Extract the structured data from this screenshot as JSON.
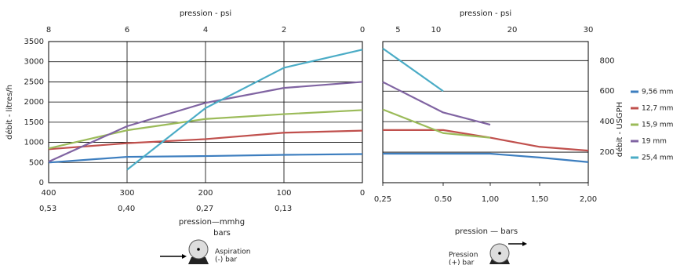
{
  "chart_data": [
    {
      "type": "line",
      "x2label": "pression - psi",
      "x2lim": [
        8,
        0
      ],
      "x2ticks": [
        8,
        6,
        4,
        2,
        0
      ],
      "xlabel": "pression—mmhg",
      "xlabel2": "bars",
      "xlim": [
        400,
        0
      ],
      "xticks": [
        400,
        300,
        200,
        100,
        0
      ],
      "x_bars_labels": [
        "0,53",
        "0,40",
        "0,27",
        "0,13"
      ],
      "ylabel": "débit - litres/h",
      "ylim": [
        0,
        3500
      ],
      "yticks": [
        0,
        500,
        1000,
        1500,
        2000,
        2500,
        3000,
        3500
      ],
      "grid": true,
      "annotations": [
        "Aspiration",
        "(-) bar"
      ],
      "x": [
        400,
        300,
        200,
        100,
        0
      ],
      "series": [
        {
          "color": "#3d7ebf",
          "values": [
            500,
            640,
            660,
            690,
            710
          ]
        },
        {
          "color": "#c0504d",
          "values": [
            830,
            980,
            1080,
            1240,
            1290
          ]
        },
        {
          "color": "#9bbb59",
          "values": [
            850,
            1300,
            1580,
            1700,
            1800
          ]
        },
        {
          "color": "#8064a2",
          "values": [
            520,
            1400,
            1980,
            2350,
            2500
          ]
        },
        {
          "color": "#4bacc6",
          "values": [
            null,
            320,
            1850,
            2850,
            3300
          ]
        }
      ]
    },
    {
      "type": "line",
      "x2label": "pression - psi",
      "x2lim": [
        3,
        30
      ],
      "x2ticks": [
        5,
        10,
        20,
        30
      ],
      "xlabel": "pression — bars",
      "xlim": [
        0.25,
        2
      ],
      "xticks": [
        {
          "value": 0.25,
          "label": "0,25"
        },
        {
          "value": 0.5,
          "label": "0.50"
        },
        {
          "value": 1,
          "label": "1,00"
        },
        {
          "value": 1.5,
          "label": "1,50"
        },
        {
          "value": 2,
          "label": "2,00"
        }
      ],
      "y2label": "débit - USGPH",
      "y2lim": [
        0,
        925
      ],
      "y2ticks": [
        200,
        400,
        600,
        800
      ],
      "grid": true,
      "annotations": [
        "Pression",
        "(+) bar"
      ],
      "x": [
        0.25,
        0.5,
        1,
        1.5,
        2
      ],
      "series": [
        {
          "name": "9,56 mm",
          "color": "#3d7ebf",
          "axis": "y2",
          "values": [
            190,
            190,
            190,
            165,
            135
          ]
        },
        {
          "name": "12,7 mm",
          "color": "#c0504d",
          "axis": "y2",
          "values": [
            345,
            345,
            295,
            235,
            210
          ]
        },
        {
          "name": "15,9 mm",
          "color": "#9bbb59",
          "axis": "y2",
          "values": [
            480,
            325,
            295,
            null,
            null
          ]
        },
        {
          "name": "19 mm",
          "color": "#8064a2",
          "axis": "y2",
          "values": [
            660,
            460,
            380,
            null,
            null
          ]
        },
        {
          "name": "25,4 mm",
          "color": "#4bacc6",
          "axis": "y2",
          "values": [
            880,
            600,
            null,
            null,
            null
          ]
        }
      ]
    }
  ]
}
